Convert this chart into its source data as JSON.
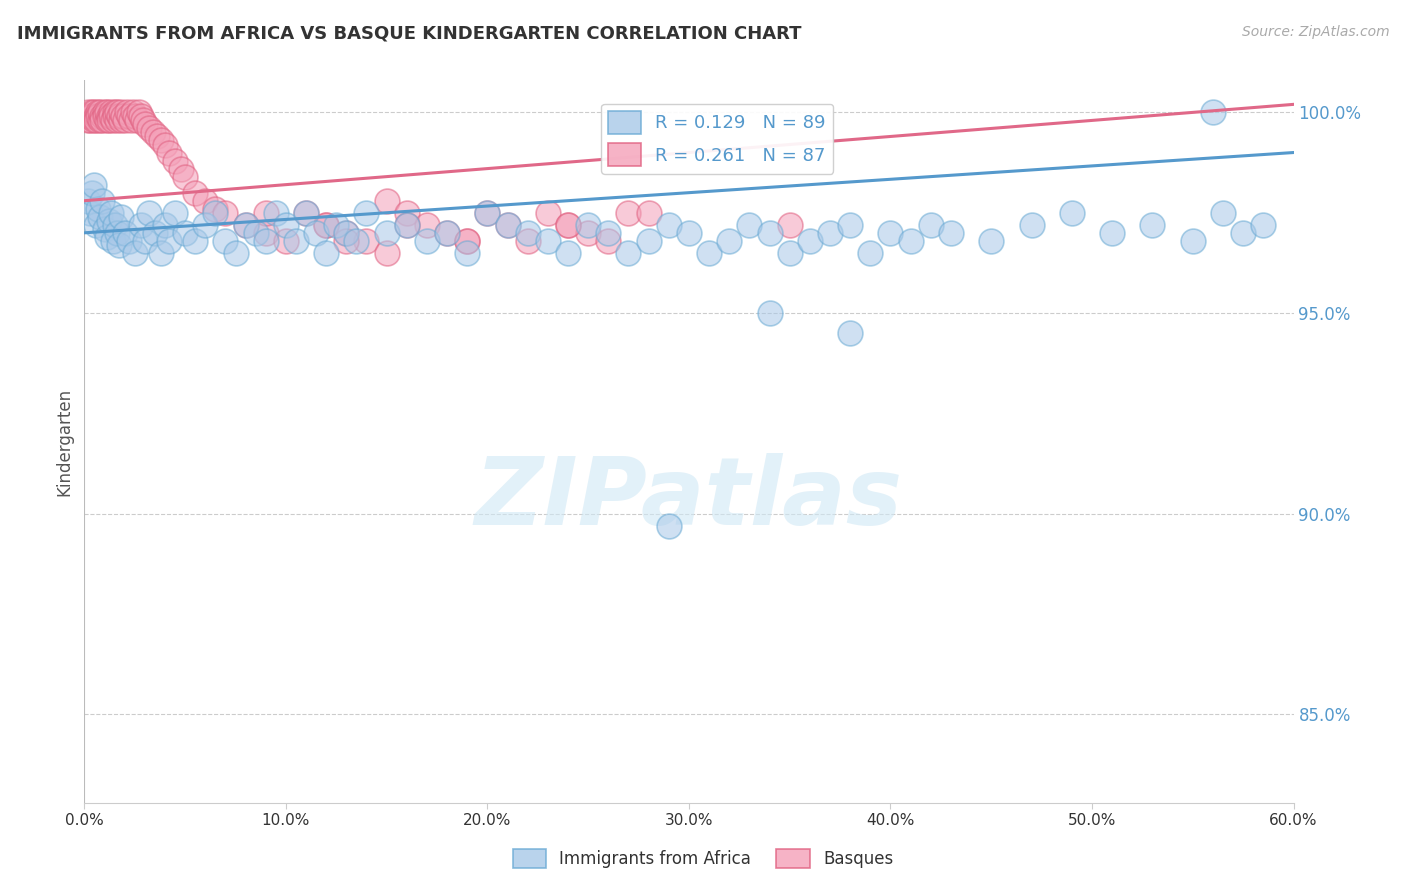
{
  "title": "IMMIGRANTS FROM AFRICA VS BASQUE KINDERGARTEN CORRELATION CHART",
  "source_text": "Source: ZipAtlas.com",
  "ylabel": "Kindergarten",
  "xlim": [
    0.0,
    0.6
  ],
  "ylim": [
    0.828,
    1.008
  ],
  "yticks": [
    0.85,
    0.9,
    0.95,
    1.0
  ],
  "ytick_labels": [
    "85.0%",
    "90.0%",
    "95.0%",
    "100.0%"
  ],
  "xticks": [
    0.0,
    0.1,
    0.2,
    0.3,
    0.4,
    0.5,
    0.6
  ],
  "xtick_labels": [
    "0.0%",
    "10.0%",
    "20.0%",
    "30.0%",
    "40.0%",
    "50.0%",
    "60.0%"
  ],
  "legend_x_label": "Immigrants from Africa",
  "legend_pink_label": "Basques",
  "R_blue": 0.129,
  "N_blue": 89,
  "R_pink": 0.261,
  "N_pink": 87,
  "blue_color": "#a8c8e8",
  "pink_color": "#f4a0b8",
  "blue_edge_color": "#6aaad4",
  "pink_edge_color": "#e06080",
  "blue_line_color": "#5599cc",
  "pink_line_color": "#e06888",
  "watermark": "ZIPatlas",
  "blue_trend_x0": 0.0,
  "blue_trend_y0": 0.97,
  "blue_trend_x1": 0.6,
  "blue_trend_y1": 0.99,
  "pink_trend_x0": 0.0,
  "pink_trend_y0": 0.978,
  "pink_trend_x1": 0.6,
  "pink_trend_y1": 1.002,
  "blue_scatter_x": [
    0.002,
    0.003,
    0.004,
    0.005,
    0.006,
    0.007,
    0.008,
    0.009,
    0.01,
    0.011,
    0.012,
    0.013,
    0.014,
    0.015,
    0.016,
    0.017,
    0.018,
    0.02,
    0.022,
    0.025,
    0.028,
    0.03,
    0.032,
    0.035,
    0.038,
    0.04,
    0.042,
    0.045,
    0.05,
    0.055,
    0.06,
    0.065,
    0.07,
    0.075,
    0.08,
    0.085,
    0.09,
    0.095,
    0.1,
    0.105,
    0.11,
    0.115,
    0.12,
    0.125,
    0.13,
    0.135,
    0.14,
    0.15,
    0.16,
    0.17,
    0.18,
    0.19,
    0.2,
    0.21,
    0.22,
    0.23,
    0.24,
    0.25,
    0.26,
    0.27,
    0.28,
    0.29,
    0.3,
    0.31,
    0.32,
    0.33,
    0.34,
    0.35,
    0.36,
    0.37,
    0.38,
    0.39,
    0.4,
    0.41,
    0.42,
    0.43,
    0.45,
    0.47,
    0.49,
    0.51,
    0.53,
    0.55,
    0.565,
    0.575,
    0.585,
    0.56,
    0.34,
    0.38,
    0.29
  ],
  "blue_scatter_y": [
    0.978,
    0.975,
    0.98,
    0.982,
    0.972,
    0.976,
    0.974,
    0.978,
    0.971,
    0.969,
    0.973,
    0.975,
    0.968,
    0.972,
    0.97,
    0.967,
    0.974,
    0.97,
    0.968,
    0.965,
    0.972,
    0.968,
    0.975,
    0.97,
    0.965,
    0.972,
    0.968,
    0.975,
    0.97,
    0.968,
    0.972,
    0.975,
    0.968,
    0.965,
    0.972,
    0.97,
    0.968,
    0.975,
    0.972,
    0.968,
    0.975,
    0.97,
    0.965,
    0.972,
    0.97,
    0.968,
    0.975,
    0.97,
    0.972,
    0.968,
    0.97,
    0.965,
    0.975,
    0.972,
    0.97,
    0.968,
    0.965,
    0.972,
    0.97,
    0.965,
    0.968,
    0.972,
    0.97,
    0.965,
    0.968,
    0.972,
    0.97,
    0.965,
    0.968,
    0.97,
    0.972,
    0.965,
    0.97,
    0.968,
    0.972,
    0.97,
    0.968,
    0.972,
    0.975,
    0.97,
    0.972,
    0.968,
    0.975,
    0.97,
    0.972,
    1.0,
    0.95,
    0.945,
    0.897
  ],
  "pink_scatter_x": [
    0.001,
    0.002,
    0.002,
    0.003,
    0.003,
    0.004,
    0.004,
    0.005,
    0.005,
    0.006,
    0.006,
    0.007,
    0.007,
    0.008,
    0.008,
    0.009,
    0.009,
    0.01,
    0.01,
    0.011,
    0.011,
    0.012,
    0.012,
    0.013,
    0.013,
    0.014,
    0.015,
    0.015,
    0.016,
    0.016,
    0.017,
    0.018,
    0.018,
    0.019,
    0.02,
    0.021,
    0.022,
    0.023,
    0.024,
    0.025,
    0.026,
    0.027,
    0.028,
    0.029,
    0.03,
    0.032,
    0.034,
    0.036,
    0.038,
    0.04,
    0.042,
    0.045,
    0.048,
    0.05,
    0.055,
    0.06,
    0.065,
    0.07,
    0.08,
    0.09,
    0.1,
    0.11,
    0.12,
    0.13,
    0.14,
    0.15,
    0.16,
    0.17,
    0.18,
    0.19,
    0.2,
    0.21,
    0.22,
    0.23,
    0.24,
    0.25,
    0.26,
    0.27,
    0.13,
    0.16,
    0.09,
    0.12,
    0.19,
    0.28,
    0.35,
    0.15,
    0.24
  ],
  "pink_scatter_y": [
    0.999,
    0.998,
    1.0,
    0.999,
    0.998,
    1.0,
    0.999,
    0.998,
    1.0,
    0.999,
    0.998,
    1.0,
    0.999,
    0.998,
    1.0,
    0.999,
    0.998,
    1.0,
    0.999,
    0.998,
    1.0,
    0.999,
    0.998,
    1.0,
    0.999,
    0.998,
    1.0,
    0.999,
    0.998,
    1.0,
    0.999,
    0.998,
    1.0,
    0.999,
    0.998,
    1.0,
    0.999,
    0.998,
    1.0,
    0.999,
    0.998,
    1.0,
    0.999,
    0.998,
    0.997,
    0.996,
    0.995,
    0.994,
    0.993,
    0.992,
    0.99,
    0.988,
    0.986,
    0.984,
    0.98,
    0.978,
    0.976,
    0.975,
    0.972,
    0.97,
    0.968,
    0.975,
    0.972,
    0.97,
    0.968,
    0.978,
    0.975,
    0.972,
    0.97,
    0.968,
    0.975,
    0.972,
    0.968,
    0.975,
    0.972,
    0.97,
    0.968,
    0.975,
    0.968,
    0.972,
    0.975,
    0.972,
    0.968,
    0.975,
    0.972,
    0.965,
    0.972
  ]
}
